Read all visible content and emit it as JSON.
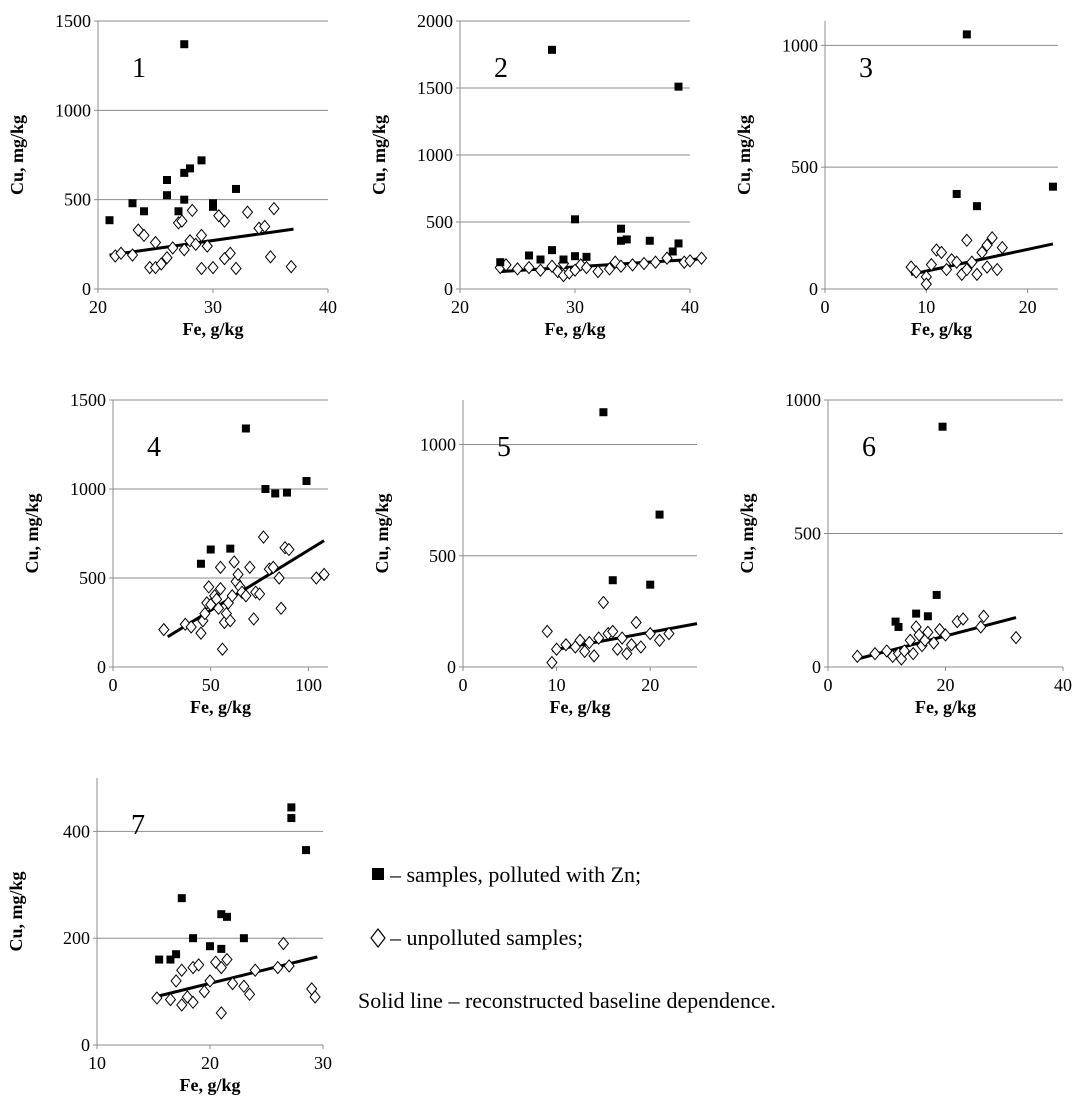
{
  "legend": {
    "polluted": "– samples, polluted with Zn;",
    "unpolluted": "– unpolluted samples;",
    "baseline": "Solid line – reconstructed baseline dependence."
  },
  "colors": {
    "grid": "#8c8c8c",
    "marker": "#000000",
    "line": "#000000"
  },
  "chart_data": [
    {
      "panel": "1",
      "type": "scatter",
      "xlabel": "Fe, g/kg",
      "ylabel": "Cu, mg/kg",
      "xlim": [
        20,
        40
      ],
      "ylim": [
        0,
        1500
      ],
      "xticks": [
        20,
        30,
        40
      ],
      "yticks": [
        0,
        500,
        1000,
        1500
      ],
      "polluted": [
        [
          21,
          385
        ],
        [
          23,
          480
        ],
        [
          24,
          435
        ],
        [
          26,
          525
        ],
        [
          26,
          610
        ],
        [
          27,
          435
        ],
        [
          27.5,
          1370
        ],
        [
          27.5,
          500
        ],
        [
          27.5,
          650
        ],
        [
          28,
          675
        ],
        [
          29,
          720
        ],
        [
          30,
          460
        ],
        [
          30,
          480
        ],
        [
          32,
          560
        ]
      ],
      "unpolluted": [
        [
          21.5,
          185
        ],
        [
          22,
          200
        ],
        [
          23,
          190
        ],
        [
          23.5,
          330
        ],
        [
          24,
          300
        ],
        [
          24.5,
          120
        ],
        [
          25,
          260
        ],
        [
          25,
          120
        ],
        [
          25.5,
          140
        ],
        [
          26,
          175
        ],
        [
          26.5,
          230
        ],
        [
          27,
          370
        ],
        [
          27.3,
          380
        ],
        [
          27.5,
          220
        ],
        [
          28,
          270
        ],
        [
          28.2,
          440
        ],
        [
          28.5,
          250
        ],
        [
          29,
          300
        ],
        [
          29,
          115
        ],
        [
          29.5,
          240
        ],
        [
          30,
          120
        ],
        [
          30.5,
          410
        ],
        [
          31,
          380
        ],
        [
          31,
          170
        ],
        [
          31.5,
          200
        ],
        [
          32,
          115
        ],
        [
          33,
          430
        ],
        [
          34,
          340
        ],
        [
          34.5,
          350
        ],
        [
          35,
          180
        ],
        [
          35.3,
          450
        ],
        [
          36.8,
          125
        ]
      ],
      "baseline": [
        [
          21,
          190
        ],
        [
          37,
          335
        ]
      ]
    },
    {
      "panel": "2",
      "type": "scatter",
      "xlabel": "Fe, g/kg",
      "ylabel": "Cu, mg/kg",
      "xlim": [
        20,
        40
      ],
      "ylim": [
        0,
        2000
      ],
      "xticks": [
        20,
        30,
        40
      ],
      "yticks": [
        0,
        500,
        1000,
        1500,
        2000
      ],
      "polluted": [
        [
          23.5,
          200
        ],
        [
          26,
          250
        ],
        [
          27,
          220
        ],
        [
          28,
          1785
        ],
        [
          28,
          290
        ],
        [
          29,
          220
        ],
        [
          30,
          245
        ],
        [
          30,
          520
        ],
        [
          31,
          240
        ],
        [
          34,
          450
        ],
        [
          34,
          360
        ],
        [
          34.5,
          370
        ],
        [
          36.5,
          360
        ],
        [
          38.5,
          280
        ],
        [
          39,
          1510
        ],
        [
          39,
          340
        ]
      ],
      "unpolluted": [
        [
          23.5,
          160
        ],
        [
          24,
          180
        ],
        [
          25,
          150
        ],
        [
          26,
          160
        ],
        [
          27,
          140
        ],
        [
          28,
          170
        ],
        [
          28.5,
          130
        ],
        [
          29,
          190
        ],
        [
          29,
          100
        ],
        [
          29.5,
          120
        ],
        [
          30,
          140
        ],
        [
          30.5,
          180
        ],
        [
          31,
          160
        ],
        [
          32,
          130
        ],
        [
          33,
          150
        ],
        [
          33.5,
          200
        ],
        [
          34,
          170
        ],
        [
          35,
          180
        ],
        [
          36,
          190
        ],
        [
          37,
          200
        ],
        [
          38,
          230
        ],
        [
          39.5,
          200
        ],
        [
          40,
          210
        ],
        [
          41,
          230
        ]
      ],
      "baseline": [
        [
          23.5,
          130
        ],
        [
          41,
          225
        ]
      ]
    },
    {
      "panel": "3",
      "type": "scatter",
      "xlabel": "Fe, g/kg",
      "ylabel": "Cu, mg/kg",
      "xlim": [
        0,
        23
      ],
      "ylim": [
        0,
        1100
      ],
      "xticks": [
        0,
        10,
        20
      ],
      "yticks": [
        0,
        500,
        1000
      ],
      "polluted": [
        [
          13,
          390
        ],
        [
          14,
          1045
        ],
        [
          15,
          340
        ],
        [
          22.5,
          420
        ]
      ],
      "unpolluted": [
        [
          8.5,
          90
        ],
        [
          9,
          70
        ],
        [
          10,
          50
        ],
        [
          10,
          20
        ],
        [
          10.5,
          100
        ],
        [
          11,
          160
        ],
        [
          11.5,
          150
        ],
        [
          12,
          80
        ],
        [
          12.5,
          120
        ],
        [
          13,
          110
        ],
        [
          13.5,
          60
        ],
        [
          14,
          200
        ],
        [
          14,
          80
        ],
        [
          14.5,
          110
        ],
        [
          15,
          60
        ],
        [
          15.5,
          150
        ],
        [
          16,
          90
        ],
        [
          16,
          180
        ],
        [
          16.5,
          210
        ],
        [
          17,
          80
        ],
        [
          17.5,
          170
        ]
      ],
      "baseline": [
        [
          8.5,
          60
        ],
        [
          22.5,
          185
        ]
      ]
    },
    {
      "panel": "4",
      "type": "scatter",
      "xlabel": "Fe, g/kg",
      "ylabel": "Cu, mg/kg",
      "xlim": [
        0,
        110
      ],
      "ylim": [
        0,
        1500
      ],
      "xticks": [
        0,
        50,
        100
      ],
      "yticks": [
        0,
        500,
        1000,
        1500
      ],
      "polluted": [
        [
          45,
          580
        ],
        [
          50,
          660
        ],
        [
          60,
          665
        ],
        [
          68,
          1340
        ],
        [
          78,
          1000
        ],
        [
          83,
          975
        ],
        [
          89,
          980
        ],
        [
          99,
          1045
        ]
      ],
      "unpolluted": [
        [
          26,
          210
        ],
        [
          37,
          240
        ],
        [
          40,
          225
        ],
        [
          45,
          190
        ],
        [
          46,
          260
        ],
        [
          47,
          300
        ],
        [
          48,
          360
        ],
        [
          49,
          450
        ],
        [
          50,
          350
        ],
        [
          52,
          400
        ],
        [
          53,
          380
        ],
        [
          54,
          330
        ],
        [
          55,
          440
        ],
        [
          55,
          560
        ],
        [
          56,
          100
        ],
        [
          57,
          250
        ],
        [
          58,
          300
        ],
        [
          59,
          360
        ],
        [
          60,
          260
        ],
        [
          61,
          400
        ],
        [
          62,
          590
        ],
        [
          63,
          480
        ],
        [
          64,
          520
        ],
        [
          65,
          450
        ],
        [
          66,
          420
        ],
        [
          68,
          400
        ],
        [
          70,
          560
        ],
        [
          72,
          270
        ],
        [
          73,
          420
        ],
        [
          75,
          410
        ],
        [
          77,
          730
        ],
        [
          80,
          550
        ],
        [
          82,
          560
        ],
        [
          85,
          500
        ],
        [
          86,
          330
        ],
        [
          88,
          670
        ],
        [
          90,
          660
        ],
        [
          104,
          500
        ],
        [
          108,
          520
        ]
      ],
      "baseline": [
        [
          28,
          170
        ],
        [
          108,
          710
        ]
      ]
    },
    {
      "panel": "5",
      "type": "scatter",
      "xlabel": "Fe, g/kg",
      "ylabel": "Cu, mg/kg",
      "xlim": [
        0,
        25
      ],
      "ylim": [
        0,
        1200
      ],
      "xticks": [
        0,
        10,
        20
      ],
      "yticks": [
        0,
        500,
        1000
      ],
      "polluted": [
        [
          15,
          1145
        ],
        [
          16,
          390
        ],
        [
          20,
          370
        ],
        [
          21,
          685
        ]
      ],
      "unpolluted": [
        [
          9,
          160
        ],
        [
          9.5,
          20
        ],
        [
          10,
          80
        ],
        [
          11,
          100
        ],
        [
          12,
          90
        ],
        [
          12.5,
          120
        ],
        [
          13,
          70
        ],
        [
          13.5,
          110
        ],
        [
          14,
          50
        ],
        [
          14.5,
          130
        ],
        [
          15,
          290
        ],
        [
          15.5,
          150
        ],
        [
          16,
          160
        ],
        [
          16.5,
          80
        ],
        [
          17,
          130
        ],
        [
          17.5,
          60
        ],
        [
          18,
          100
        ],
        [
          18.5,
          200
        ],
        [
          19,
          90
        ],
        [
          20,
          150
        ],
        [
          21,
          120
        ],
        [
          22,
          150
        ]
      ],
      "baseline": [
        [
          9.5,
          75
        ],
        [
          25,
          195
        ]
      ]
    },
    {
      "panel": "6",
      "type": "scatter",
      "xlabel": "Fe, g/kg",
      "ylabel": "Cu, mg/kg",
      "xlim": [
        0,
        40
      ],
      "ylim": [
        0,
        1000
      ],
      "xticks": [
        0,
        20,
        40
      ],
      "yticks": [
        0,
        500,
        1000
      ],
      "polluted": [
        [
          11.5,
          170
        ],
        [
          12,
          150
        ],
        [
          15,
          200
        ],
        [
          17,
          190
        ],
        [
          18.5,
          270
        ],
        [
          19.5,
          900
        ]
      ],
      "unpolluted": [
        [
          5,
          40
        ],
        [
          8,
          50
        ],
        [
          10,
          60
        ],
        [
          11,
          40
        ],
        [
          12,
          50
        ],
        [
          12.5,
          30
        ],
        [
          13,
          60
        ],
        [
          14,
          100
        ],
        [
          14.5,
          50
        ],
        [
          15,
          150
        ],
        [
          15.5,
          120
        ],
        [
          16,
          80
        ],
        [
          16.5,
          100
        ],
        [
          17,
          130
        ],
        [
          18,
          90
        ],
        [
          19,
          140
        ],
        [
          20,
          120
        ],
        [
          22,
          170
        ],
        [
          23,
          180
        ],
        [
          26,
          150
        ],
        [
          26.5,
          190
        ],
        [
          32,
          110
        ]
      ],
      "baseline": [
        [
          5,
          30
        ],
        [
          32,
          185
        ]
      ]
    },
    {
      "panel": "7",
      "type": "scatter",
      "xlabel": "Fe, g/kg",
      "ylabel": "Cu, mg/kg",
      "xlim": [
        10,
        30
      ],
      "ylim": [
        0,
        500
      ],
      "xticks": [
        10,
        20,
        30
      ],
      "yticks": [
        0,
        200,
        400
      ],
      "polluted": [
        [
          15.5,
          160
        ],
        [
          16.5,
          160
        ],
        [
          17,
          170
        ],
        [
          17.5,
          275
        ],
        [
          18.5,
          200
        ],
        [
          20,
          185
        ],
        [
          21,
          180
        ],
        [
          21,
          245
        ],
        [
          21.5,
          240
        ],
        [
          23,
          200
        ],
        [
          27.2,
          445
        ],
        [
          27.2,
          425
        ],
        [
          28.5,
          365
        ]
      ],
      "unpolluted": [
        [
          15.3,
          88
        ],
        [
          16.5,
          85
        ],
        [
          17,
          120
        ],
        [
          17.5,
          75
        ],
        [
          17.5,
          140
        ],
        [
          18,
          90
        ],
        [
          18.5,
          80
        ],
        [
          18.5,
          145
        ],
        [
          19,
          150
        ],
        [
          19.5,
          100
        ],
        [
          20,
          120
        ],
        [
          20.5,
          155
        ],
        [
          21,
          60
        ],
        [
          21,
          145
        ],
        [
          21.5,
          160
        ],
        [
          22,
          115
        ],
        [
          23,
          110
        ],
        [
          23.5,
          95
        ],
        [
          24,
          140
        ],
        [
          26,
          145
        ],
        [
          26.5,
          190
        ],
        [
          27,
          148
        ],
        [
          29,
          105
        ],
        [
          29.3,
          90
        ]
      ],
      "baseline": [
        [
          15.5,
          92
        ],
        [
          29.5,
          165
        ]
      ]
    }
  ]
}
